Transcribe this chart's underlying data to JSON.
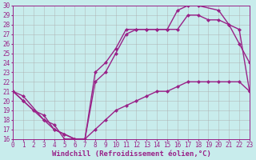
{
  "background_color": "#c8ecec",
  "grid_color": "#aaaaaa",
  "line_color": "#992288",
  "marker": "D",
  "markersize": 2.5,
  "linewidth": 1.0,
  "xlabel": "Windchill (Refroidissement éolien,°C)",
  "xlabel_fontsize": 6.5,
  "tick_fontsize": 5.5,
  "xmin": 0,
  "xmax": 23,
  "ymin": 16,
  "ymax": 30,
  "curve1_x": [
    0,
    1,
    2,
    3,
    4,
    5,
    6,
    7,
    8,
    9,
    10,
    11,
    12,
    13,
    14,
    15,
    16,
    17,
    18,
    19,
    20,
    21,
    22,
    23
  ],
  "curve1_y": [
    21,
    20,
    19,
    18.5,
    17,
    16.5,
    16,
    16,
    17,
    18,
    19,
    19.5,
    20,
    20.5,
    21,
    21,
    21.5,
    22,
    22,
    22,
    22,
    22,
    22,
    21
  ],
  "curve2_x": [
    0,
    1,
    3,
    4,
    5,
    6,
    7,
    8,
    9,
    10,
    11,
    12,
    13,
    14,
    15,
    16,
    17,
    18,
    19,
    20,
    21,
    22,
    23
  ],
  "curve2_y": [
    21,
    20,
    18,
    17,
    16.5,
    16,
    16,
    22,
    23,
    25,
    27,
    27.5,
    27.5,
    27.5,
    27.5,
    27.5,
    29,
    29,
    28.5,
    28.5,
    28,
    26,
    24
  ],
  "curve3_x": [
    0,
    1,
    3,
    4,
    5,
    6,
    7,
    8,
    9,
    10,
    11,
    12,
    13,
    14,
    15,
    16,
    17,
    18,
    20,
    21,
    22,
    23
  ],
  "curve3_y": [
    21,
    20.5,
    18,
    17.5,
    16,
    16,
    16,
    23,
    24,
    25.5,
    27.5,
    27.5,
    27.5,
    27.5,
    27.5,
    29.5,
    30,
    30,
    29.5,
    28,
    27.5,
    21
  ]
}
